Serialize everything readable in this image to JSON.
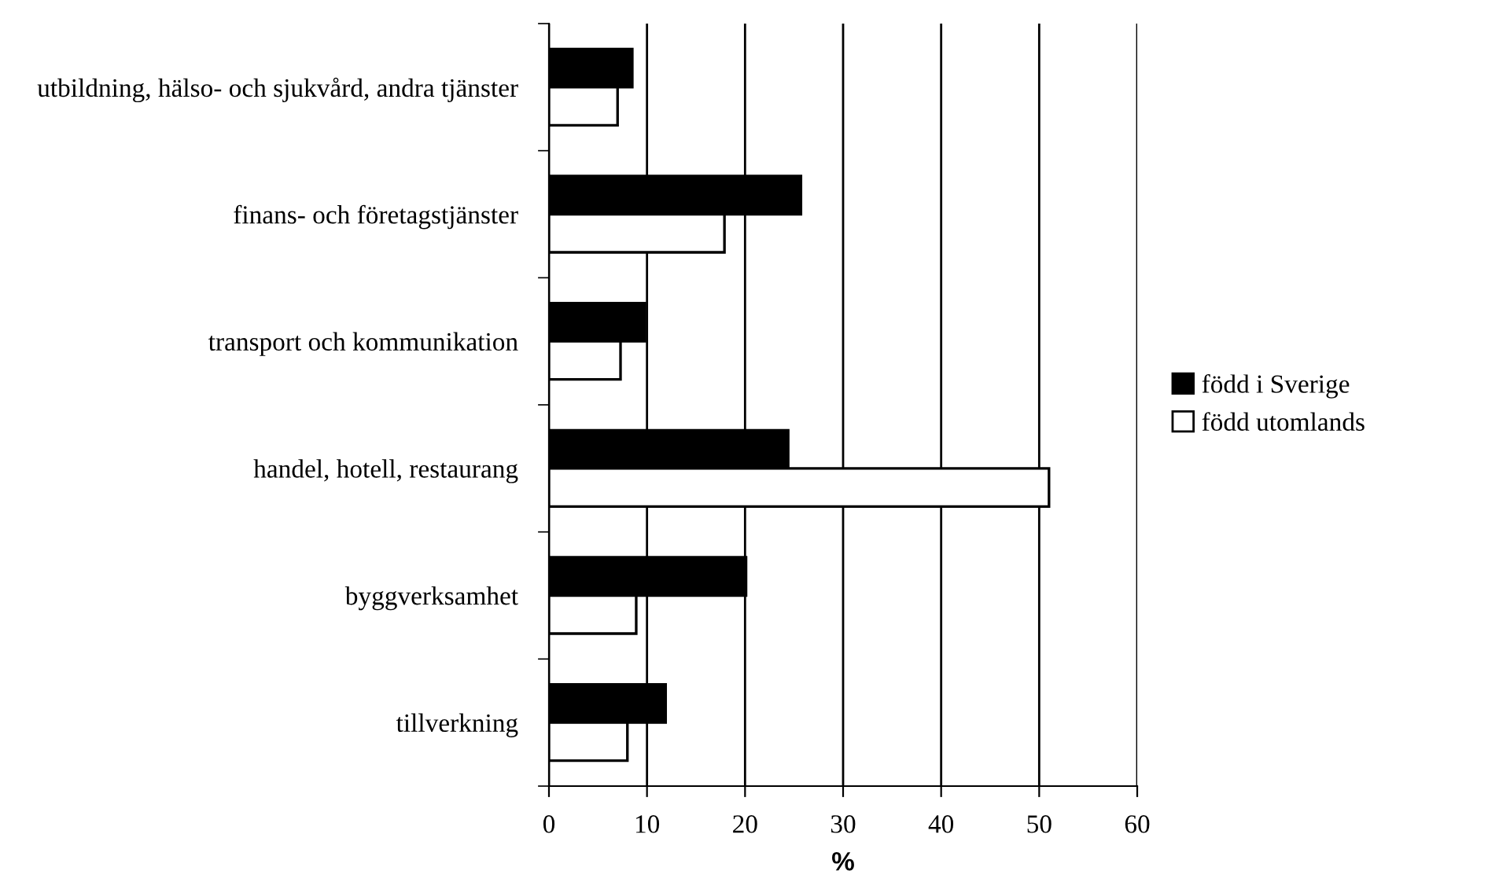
{
  "chart_data": {
    "type": "bar",
    "orientation": "horizontal",
    "xlabel": "%",
    "categories": [
      "utbildning, hälso- och sjukvård, andra tjänster",
      "finans- och företagstjänster",
      "transport och kommunikation",
      "handel, hotell, restaurang",
      "byggverksamhet",
      "tillverkning"
    ],
    "series": [
      {
        "name": "född i Sverige",
        "color": "#000000",
        "values": [
          8.5,
          25.7,
          9.8,
          24.4,
          20.1,
          11.9
        ]
      },
      {
        "name": "född utomlands",
        "color": "#ffffff",
        "values": [
          7.0,
          17.9,
          7.3,
          51.0,
          8.9,
          8.0
        ]
      }
    ],
    "xlim": [
      0,
      60
    ],
    "xticks": [
      0,
      10,
      20,
      30,
      40,
      50,
      60
    ],
    "grid": "x",
    "legend": "right"
  }
}
